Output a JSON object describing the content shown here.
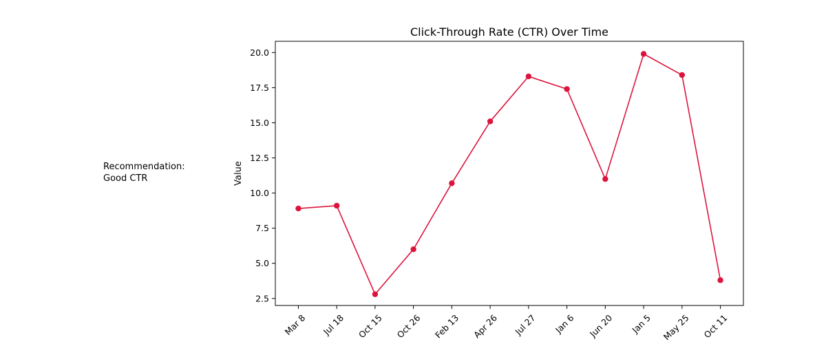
{
  "annotation": {
    "text": "Recommendation:\nGood CTR"
  },
  "chart_data": {
    "type": "line",
    "title": "Click-Through Rate (CTR) Over Time",
    "xlabel": "",
    "ylabel": "Value",
    "categories": [
      "Mar 8",
      "Jul 18",
      "Oct 15",
      "Oct 26",
      "Feb 13",
      "Apr 26",
      "Jul 27",
      "Jan 6",
      "Jun 20",
      "Jan 5",
      "May 25",
      "Oct 11"
    ],
    "series": [
      {
        "values": [
          8.9,
          9.1,
          2.8,
          6.0,
          10.7,
          15.1,
          18.3,
          17.4,
          11.0,
          19.9,
          18.4,
          3.8
        ]
      }
    ],
    "ylim": [
      2.0,
      20.8
    ],
    "yticks": [
      2.5,
      5.0,
      7.5,
      10.0,
      12.5,
      15.0,
      17.5,
      20.0
    ],
    "grid": false,
    "legend": "none",
    "colors": {
      "line": "#dc143c",
      "marker": "#dc143c",
      "axis": "#000000"
    }
  }
}
